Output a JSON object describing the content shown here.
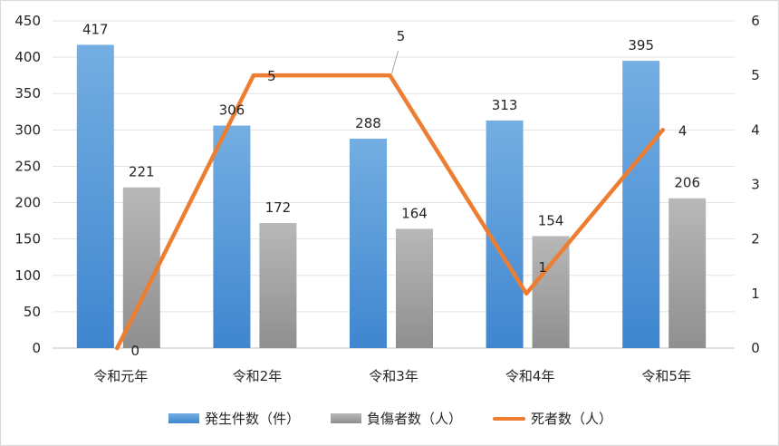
{
  "chart_data": {
    "type": "bar",
    "categories": [
      "令和元年",
      "令和2年",
      "令和3年",
      "令和4年",
      "令和5年"
    ],
    "series": [
      {
        "name": "発生件数（件）",
        "type": "bar",
        "axis": "left",
        "color": "#5b9bd5",
        "values": [
          417,
          306,
          288,
          313,
          395
        ]
      },
      {
        "name": "負傷者数（人）",
        "type": "bar",
        "axis": "left",
        "color": "#a5a5a5",
        "values": [
          221,
          172,
          164,
          154,
          206
        ]
      },
      {
        "name": "死者数（人）",
        "type": "line",
        "axis": "right",
        "color": "#ed7d31",
        "values": [
          0,
          5,
          5,
          1,
          4
        ]
      }
    ],
    "ylim_left": [
      0,
      450
    ],
    "yticks_left": [
      0,
      50,
      100,
      150,
      200,
      250,
      300,
      350,
      400,
      450
    ],
    "ylim_right": [
      0,
      6
    ],
    "yticks_right": [
      0,
      1,
      2,
      3,
      4,
      5,
      6
    ],
    "grid": true,
    "legend_position": "bottom"
  }
}
